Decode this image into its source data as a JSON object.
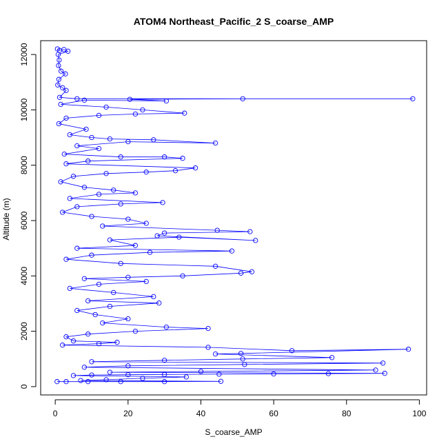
{
  "chart_data": {
    "type": "line",
    "title": "ATOM4 Northeast_Pacific_2 S_coarse_AMP",
    "xlabel": "S_coarse_AMP",
    "ylabel": "Altitude (m)",
    "xlim": [
      -4,
      102
    ],
    "ylim": [
      -300,
      12500
    ],
    "x_ticks": [
      0,
      20,
      40,
      60,
      80,
      100
    ],
    "y_ticks": [
      0,
      2000,
      4000,
      6000,
      8000,
      10000,
      12000
    ],
    "grid": false,
    "marker": "open-circle",
    "colors": {
      "series": "#0000ff",
      "axis": "#000000"
    },
    "series": [
      {
        "points": [
          [
            0.6,
            12200
          ],
          [
            1.2,
            12150
          ],
          [
            2.4,
            12180
          ],
          [
            3.5,
            12120
          ],
          [
            0.8,
            12000
          ],
          [
            1.1,
            11800
          ],
          [
            0.9,
            11600
          ],
          [
            1.6,
            11400
          ],
          [
            2.8,
            11300
          ],
          [
            1.0,
            11100
          ],
          [
            0.7,
            10900
          ],
          [
            2.0,
            10800
          ],
          [
            3.0,
            10700
          ],
          [
            1.2,
            10450
          ],
          [
            6.0,
            10400
          ],
          [
            98.2,
            10400
          ],
          [
            51.5,
            10400
          ],
          [
            20.5,
            10380
          ],
          [
            30.5,
            10320
          ],
          [
            8.0,
            10350
          ],
          [
            1.5,
            10200
          ],
          [
            14.0,
            10100
          ],
          [
            24.0,
            10000
          ],
          [
            35.5,
            9880
          ],
          [
            22.0,
            9850
          ],
          [
            12.0,
            9800
          ],
          [
            3.0,
            9700
          ],
          [
            1.0,
            9500
          ],
          [
            8.5,
            9300
          ],
          [
            4.0,
            9100
          ],
          [
            10.0,
            9000
          ],
          [
            15.0,
            8950
          ],
          [
            27.0,
            8920
          ],
          [
            44.0,
            8800
          ],
          [
            20.0,
            8850
          ],
          [
            6.0,
            8700
          ],
          [
            12.0,
            8600
          ],
          [
            2.5,
            8400
          ],
          [
            18.0,
            8300
          ],
          [
            30.0,
            8300
          ],
          [
            35.0,
            8250
          ],
          [
            9.0,
            8150
          ],
          [
            3.0,
            8050
          ],
          [
            38.5,
            7900
          ],
          [
            33.0,
            7800
          ],
          [
            25.0,
            7750
          ],
          [
            14.0,
            7700
          ],
          [
            5.0,
            7600
          ],
          [
            1.5,
            7400
          ],
          [
            8.0,
            7200
          ],
          [
            16.0,
            7100
          ],
          [
            22.0,
            7000
          ],
          [
            12.0,
            6950
          ],
          [
            4.0,
            6800
          ],
          [
            29.5,
            6650
          ],
          [
            18.0,
            6600
          ],
          [
            6.0,
            6500
          ],
          [
            2.0,
            6300
          ],
          [
            10.0,
            6150
          ],
          [
            20.0,
            6050
          ],
          [
            25.0,
            5900
          ],
          [
            13.0,
            5800
          ],
          [
            44.5,
            5650
          ],
          [
            53.5,
            5600
          ],
          [
            30.0,
            5550
          ],
          [
            28.0,
            5450
          ],
          [
            55.0,
            5280
          ],
          [
            34.0,
            5400
          ],
          [
            15.0,
            5300
          ],
          [
            22.0,
            5100
          ],
          [
            6.0,
            5000
          ],
          [
            48.5,
            4900
          ],
          [
            26.0,
            4850
          ],
          [
            10.0,
            4750
          ],
          [
            3.0,
            4600
          ],
          [
            18.0,
            4450
          ],
          [
            44.0,
            4350
          ],
          [
            54.0,
            4150
          ],
          [
            51.0,
            4100
          ],
          [
            35.0,
            4000
          ],
          [
            20.0,
            3950
          ],
          [
            8.0,
            3900
          ],
          [
            25.0,
            3800
          ],
          [
            12.0,
            3700
          ],
          [
            4.0,
            3550
          ],
          [
            16.0,
            3400
          ],
          [
            27.0,
            3250
          ],
          [
            9.0,
            3100
          ],
          [
            28.5,
            3020
          ],
          [
            15.0,
            2900
          ],
          [
            6.0,
            2750
          ],
          [
            11.0,
            2600
          ],
          [
            20.0,
            2450
          ],
          [
            13.0,
            2300
          ],
          [
            30.5,
            2150
          ],
          [
            42.0,
            2100
          ],
          [
            22.0,
            2000
          ],
          [
            9.0,
            1900
          ],
          [
            3.0,
            1800
          ],
          [
            5.0,
            1650
          ],
          [
            17.0,
            1600
          ],
          [
            12.0,
            1550
          ],
          [
            2.0,
            1500
          ],
          [
            42.0,
            1420
          ],
          [
            65.0,
            1300
          ],
          [
            97.0,
            1350
          ],
          [
            51.0,
            1200
          ],
          [
            44.0,
            1180
          ],
          [
            76.0,
            1050
          ],
          [
            51.5,
            1000
          ],
          [
            30.0,
            950
          ],
          [
            10.0,
            900
          ],
          [
            90.0,
            850
          ],
          [
            52.0,
            800
          ],
          [
            20.0,
            750
          ],
          [
            8.0,
            700
          ],
          [
            88.0,
            600
          ],
          [
            40.0,
            550
          ],
          [
            15.0,
            520
          ],
          [
            90.5,
            480
          ],
          [
            75.0,
            470
          ],
          [
            60.0,
            460
          ],
          [
            45.0,
            450
          ],
          [
            30.0,
            440
          ],
          [
            20.0,
            430
          ],
          [
            10.0,
            420
          ],
          [
            5.0,
            400
          ],
          [
            36.0,
            350
          ],
          [
            24.0,
            300
          ],
          [
            14.0,
            250
          ],
          [
            7.0,
            220
          ],
          [
            45.5,
            190
          ],
          [
            30.0,
            180
          ],
          [
            18.0,
            180
          ],
          [
            9.0,
            180
          ],
          [
            3.0,
            180
          ],
          [
            0.5,
            180
          ]
        ]
      }
    ]
  }
}
